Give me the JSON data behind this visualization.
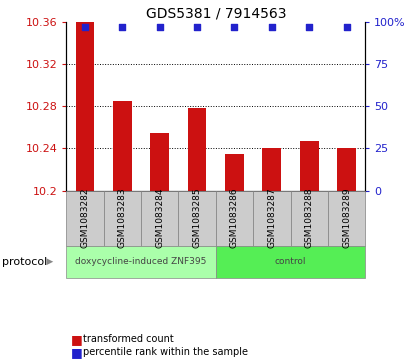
{
  "title": "GDS5381 / 7914563",
  "samples": [
    "GSM1083282",
    "GSM1083283",
    "GSM1083284",
    "GSM1083285",
    "GSM1083286",
    "GSM1083287",
    "GSM1083288",
    "GSM1083289"
  ],
  "transformed_counts": [
    10.36,
    10.285,
    10.255,
    10.278,
    10.235,
    10.24,
    10.247,
    10.24
  ],
  "percentile_ranks": [
    97,
    97,
    97,
    97,
    97,
    97,
    97,
    97
  ],
  "ylim_left": [
    10.2,
    10.36
  ],
  "ylim_right": [
    0,
    100
  ],
  "yticks_left": [
    10.2,
    10.24,
    10.28,
    10.32,
    10.36
  ],
  "yticks_right": [
    0,
    25,
    50,
    75,
    100
  ],
  "dotted_grid_vals": [
    10.24,
    10.28,
    10.32
  ],
  "bar_color": "#cc1111",
  "dot_color": "#2222cc",
  "protocol_groups": [
    {
      "label": "doxycycline-induced ZNF395",
      "start": 0,
      "end": 4,
      "color": "#aaffaa"
    },
    {
      "label": "control",
      "start": 4,
      "end": 8,
      "color": "#55ee55"
    }
  ],
  "legend_bar_label": "transformed count",
  "legend_dot_label": "percentile rank within the sample",
  "protocol_label": "protocol",
  "sample_box_color": "#cccccc",
  "background_color": "#ffffff",
  "title_fontsize": 10,
  "tick_fontsize": 8,
  "label_fontsize": 7,
  "sample_fontsize": 6.5,
  "proto_fontsize": 6.5
}
